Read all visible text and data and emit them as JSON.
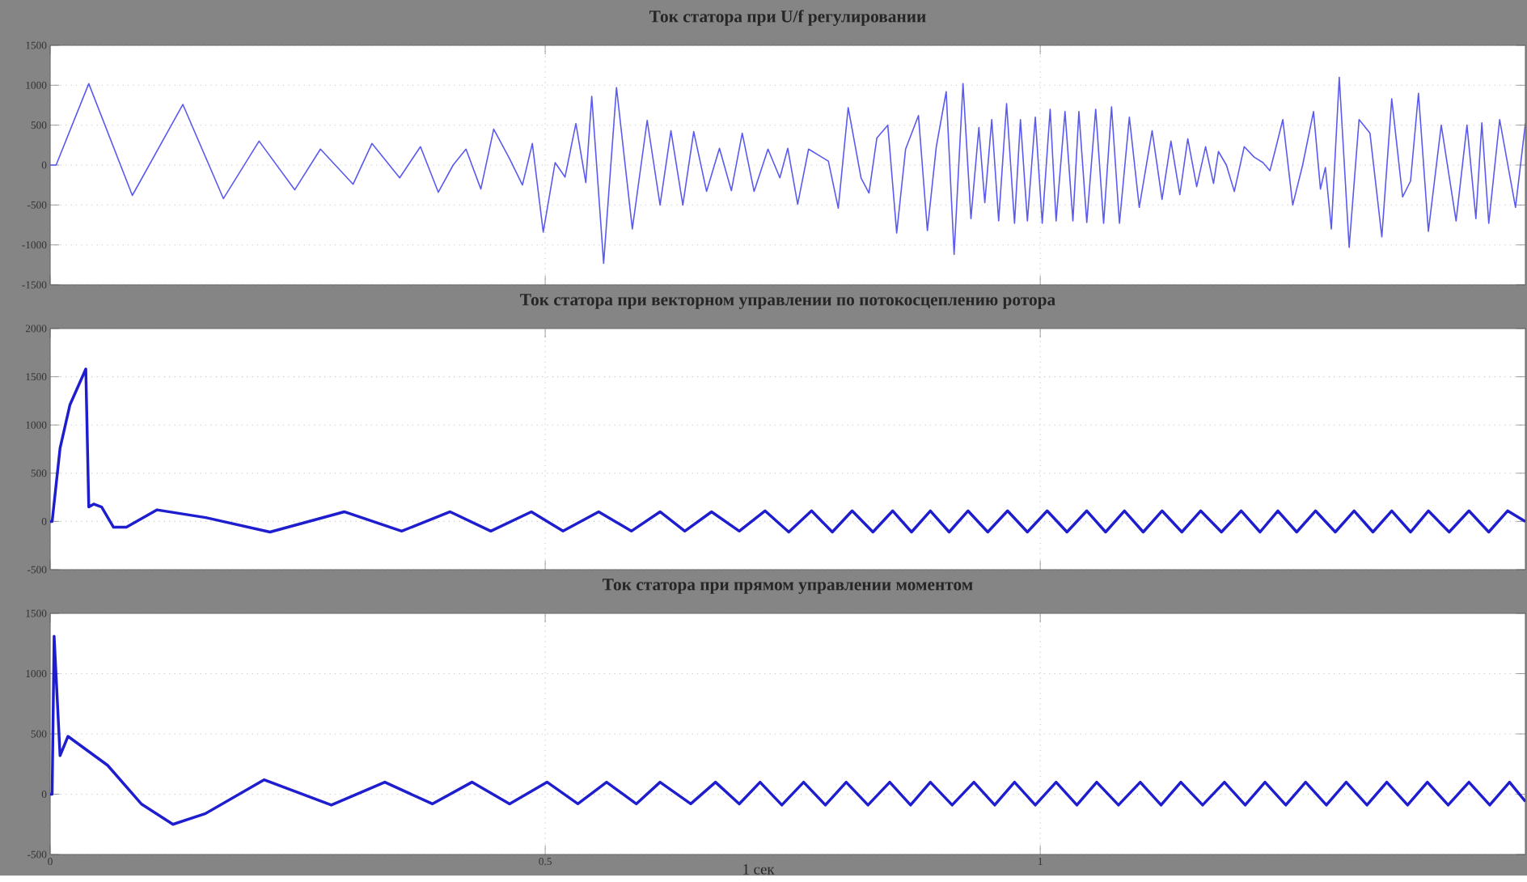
{
  "chart_data": [
    {
      "type": "line",
      "title": "Ток статора при U/f регулировании",
      "xlim": [
        0,
        1.49
      ],
      "ylim": [
        -1500,
        1500
      ],
      "xticks": [
        0,
        0.5,
        1
      ],
      "yticks": [
        -1500,
        -1000,
        -500,
        0,
        500,
        1000,
        1500
      ],
      "grid": true,
      "tick_labels": "y",
      "series": [
        {
          "color": "#5a5af0",
          "x": [
            0,
            0.006,
            0.039,
            0.083,
            0.134,
            0.175,
            0.211,
            0.247,
            0.273,
            0.306,
            0.325,
            0.353,
            0.374,
            0.392,
            0.407,
            0.42,
            0.435,
            0.448,
            0.464,
            0.477,
            0.487,
            0.498,
            0.51,
            0.52,
            0.531,
            0.541,
            0.547,
            0.559,
            0.572,
            0.588,
            0.603,
            0.616,
            0.627,
            0.639,
            0.65,
            0.663,
            0.676,
            0.688,
            0.699,
            0.711,
            0.725,
            0.737,
            0.745,
            0.755,
            0.766,
            0.786,
            0.796,
            0.806,
            0.819,
            0.827,
            0.835,
            0.846,
            0.855,
            0.864,
            0.877,
            0.886,
            0.895,
            0.905,
            0.913,
            0.922,
            0.93,
            0.938,
            0.944,
            0.951,
            0.958,
            0.966,
            0.974,
            0.98,
            0.987,
            0.995,
            1.002,
            1.01,
            1.016,
            1.025,
            1.033,
            1.039,
            1.047,
            1.056,
            1.064,
            1.072,
            1.08,
            1.09,
            1.1,
            1.113,
            1.123,
            1.132,
            1.141,
            1.149,
            1.158,
            1.167,
            1.175,
            1.18,
            1.188,
            1.196,
            1.206,
            1.216,
            1.225,
            1.232,
            1.237,
            1.245,
            1.255,
            1.265,
            1.276,
            1.283,
            1.288,
            1.294,
            1.302,
            1.312,
            1.322,
            1.333,
            1.345,
            1.355,
            1.366,
            1.374,
            1.382,
            1.392,
            1.405,
            1.42,
            1.431,
            1.44,
            1.446,
            1.453,
            1.464,
            1.48,
            1.49
          ],
          "values": [
            0,
            0,
            1020,
            -380,
            760,
            -420,
            300,
            -310,
            200,
            -240,
            270,
            -160,
            230,
            -340,
            0,
            200,
            -300,
            450,
            80,
            -250,
            270,
            -840,
            30,
            -150,
            520,
            -220,
            860,
            -1230,
            970,
            -800,
            560,
            -500,
            430,
            -500,
            420,
            -330,
            210,
            -320,
            400,
            -330,
            200,
            -160,
            210,
            -490,
            200,
            50,
            -540,
            720,
            -160,
            -350,
            340,
            500,
            -850,
            200,
            620,
            -820,
            230,
            920,
            -1120,
            1020,
            -670,
            470,
            -470,
            570,
            -700,
            770,
            -730,
            570,
            -700,
            600,
            -730,
            700,
            -700,
            670,
            -700,
            670,
            -720,
            700,
            -730,
            730,
            -730,
            600,
            -530,
            430,
            -430,
            300,
            -370,
            330,
            -270,
            230,
            -230,
            170,
            0,
            -330,
            230,
            100,
            30,
            -70,
            170,
            570,
            -500,
            0,
            670,
            -300,
            -30,
            -800,
            1100,
            -1030,
            570,
            400,
            -900,
            830,
            -400,
            -200,
            900,
            -830,
            500,
            -700,
            500,
            -670,
            530,
            -730,
            570,
            -530,
            520
          ]
        }
      ]
    },
    {
      "type": "line",
      "title": "Ток статора при векторном управлении по потокосцеплению ротора",
      "xlim": [
        0,
        1.49
      ],
      "ylim": [
        -500,
        2000
      ],
      "xticks": [
        0,
        0.5,
        1
      ],
      "yticks": [
        -500,
        0,
        500,
        1000,
        1500,
        2000
      ],
      "grid": true,
      "tick_labels": "y",
      "series": [
        {
          "color": "#1e1ecf",
          "x": [
            0,
            0.002,
            0.01,
            0.02,
            0.036,
            0.039,
            0.044,
            0.052,
            0.064,
            0.077,
            0.108,
            0.157,
            0.222,
            0.297,
            0.355,
            0.404,
            0.445,
            0.486,
            0.518,
            0.554,
            0.587,
            0.616,
            0.641,
            0.668,
            0.696,
            0.722,
            0.746,
            0.769,
            0.79,
            0.81,
            0.831,
            0.851,
            0.87,
            0.889,
            0.908,
            0.927,
            0.947,
            0.967,
            0.987,
            1.007,
            1.027,
            1.047,
            1.066,
            1.085,
            1.104,
            1.123,
            1.143,
            1.162,
            1.183,
            1.203,
            1.222,
            1.24,
            1.259,
            1.278,
            1.298,
            1.317,
            1.336,
            1.355,
            1.374,
            1.392,
            1.413,
            1.433,
            1.453,
            1.472,
            1.49
          ],
          "values": [
            0,
            0,
            760,
            1210,
            1580,
            150,
            180,
            150,
            -60,
            -60,
            120,
            40,
            -110,
            100,
            -100,
            100,
            -100,
            100,
            -100,
            100,
            -100,
            100,
            -100,
            100,
            -100,
            110,
            -110,
            110,
            -110,
            110,
            -110,
            110,
            -110,
            110,
            -110,
            110,
            -110,
            110,
            -110,
            110,
            -110,
            110,
            -110,
            110,
            -110,
            110,
            -110,
            110,
            -110,
            110,
            -110,
            110,
            -110,
            110,
            -110,
            110,
            -110,
            110,
            -110,
            110,
            -110,
            110,
            -110,
            110,
            0
          ]
        }
      ]
    },
    {
      "type": "line",
      "title": "Ток статора при прямом управлении моментом",
      "xlabel": "1 сек",
      "xlim": [
        0,
        1.49
      ],
      "ylim": [
        -500,
        1500
      ],
      "xticks": [
        0,
        0.5,
        1
      ],
      "yticks": [
        -500,
        0,
        500,
        1000,
        1500
      ],
      "grid": true,
      "series": [
        {
          "color": "#1e1ecf",
          "x": [
            0,
            0.002,
            0.004,
            0.01,
            0.018,
            0.058,
            0.092,
            0.124,
            0.157,
            0.216,
            0.284,
            0.338,
            0.386,
            0.426,
            0.464,
            0.502,
            0.533,
            0.562,
            0.592,
            0.616,
            0.647,
            0.672,
            0.696,
            0.717,
            0.739,
            0.761,
            0.783,
            0.804,
            0.826,
            0.848,
            0.869,
            0.889,
            0.911,
            0.933,
            0.954,
            0.974,
            0.995,
            1.016,
            1.037,
            1.057,
            1.079,
            1.101,
            1.122,
            1.142,
            1.164,
            1.186,
            1.207,
            1.227,
            1.248,
            1.268,
            1.289,
            1.309,
            1.33,
            1.35,
            1.371,
            1.391,
            1.412,
            1.433,
            1.454,
            1.474,
            1.49
          ],
          "values": [
            0,
            0,
            1310,
            320,
            480,
            240,
            -80,
            -250,
            -160,
            120,
            -90,
            100,
            -80,
            100,
            -80,
            100,
            -80,
            100,
            -80,
            100,
            -80,
            100,
            -80,
            100,
            -90,
            100,
            -90,
            100,
            -90,
            100,
            -90,
            100,
            -90,
            100,
            -90,
            100,
            -90,
            100,
            -90,
            100,
            -90,
            100,
            -90,
            100,
            -90,
            100,
            -90,
            100,
            -90,
            100,
            -90,
            100,
            -90,
            100,
            -90,
            100,
            -90,
            100,
            -90,
            100,
            -60
          ]
        }
      ]
    }
  ]
}
